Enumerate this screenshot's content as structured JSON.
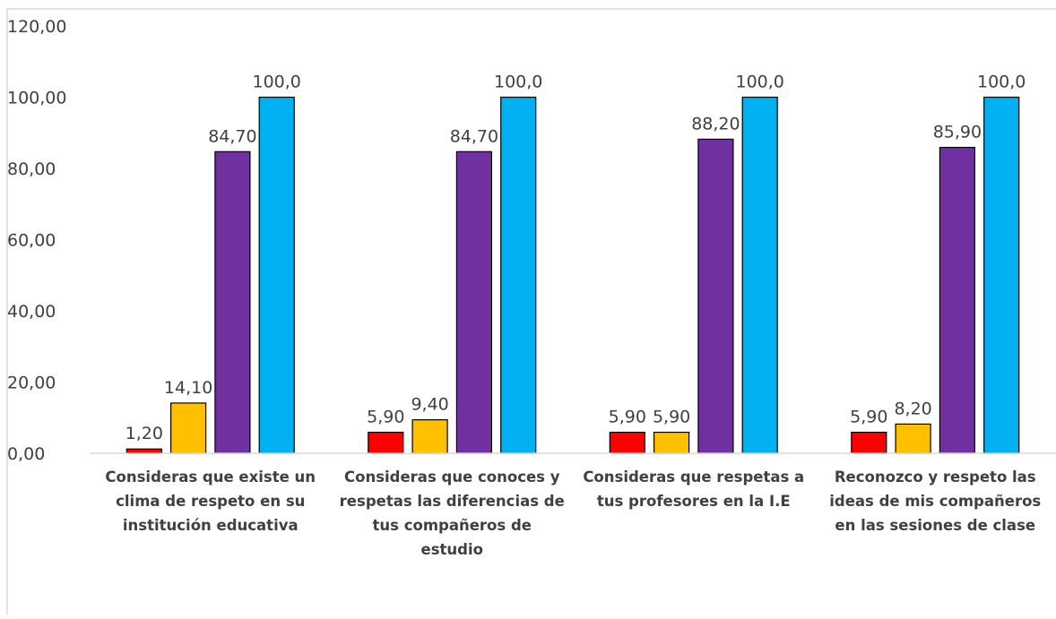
{
  "chart_data": {
    "type": "bar",
    "categories": [
      [
        "Consideras que existe un",
        "clima de respeto en su",
        "institución educativa"
      ],
      [
        "Consideras que conoces y",
        "respetas las diferencias de",
        "tus compañeros de",
        "estudio"
      ],
      [
        "Consideras que respetas a",
        "tus profesores en la I.E"
      ],
      [
        "Reconozco y respeto las",
        "ideas de mis compañeros",
        "en las sesiones de clase"
      ]
    ],
    "series": [
      {
        "color": "#ff0000",
        "values": [
          1.2,
          5.9,
          5.9,
          5.9
        ],
        "labels": [
          "1,20",
          "5,90",
          "5,90",
          "5,90"
        ]
      },
      {
        "color": "#ffc000",
        "values": [
          14.1,
          9.4,
          5.9,
          8.2
        ],
        "labels": [
          "14,10",
          "9,40",
          "5,90",
          "8,20"
        ]
      },
      {
        "color": "#7030a0",
        "values": [
          84.7,
          84.7,
          88.2,
          85.9
        ],
        "labels": [
          "84,70",
          "84,70",
          "88,20",
          "85,90"
        ]
      },
      {
        "color": "#00b0f0",
        "values": [
          100.0,
          100.0,
          100.0,
          100.0
        ],
        "labels": [
          "100,0",
          "100,0",
          "100,0",
          "100,0"
        ]
      }
    ],
    "ylim": [
      0,
      120
    ],
    "yticks": [
      "0,00",
      "20,00",
      "40,00",
      "60,00",
      "80,00",
      "100,00",
      "120,00"
    ],
    "grid": false,
    "title": "",
    "xlabel": "",
    "ylabel": ""
  }
}
